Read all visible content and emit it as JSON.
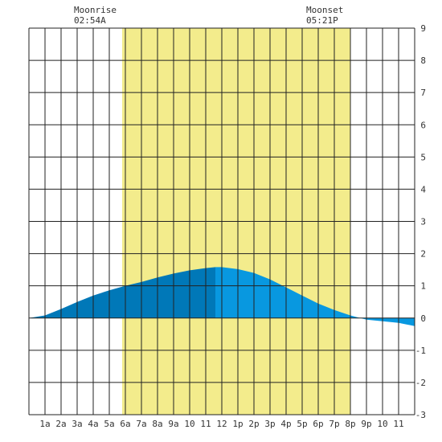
{
  "moon": {
    "rise_label": "Moonrise",
    "rise_time": "02:54A",
    "set_label": "Moonset",
    "set_time": "05:21P"
  },
  "colors": {
    "daylight": "#f3ec8c",
    "tide_left": "#0078b8",
    "tide_right": "#0898e0",
    "grid": "#222222",
    "background": "#ffffff"
  },
  "chart_data": {
    "type": "area",
    "xlim": [
      0,
      24
    ],
    "ylim": [
      -3,
      9
    ],
    "grid": true,
    "x_tick_labels": [
      "1a",
      "2a",
      "3a",
      "4a",
      "5a",
      "6a",
      "7a",
      "8a",
      "9a",
      "10",
      "11",
      "12",
      "1p",
      "2p",
      "3p",
      "4p",
      "5p",
      "6p",
      "7p",
      "8p",
      "9p",
      "10",
      "11"
    ],
    "y_tick_labels": [
      "9",
      "8",
      "7",
      "6",
      "5",
      "4",
      "3",
      "2",
      "1",
      "0",
      "-1",
      "-2",
      "-3"
    ],
    "daylight_hours": [
      5.8,
      20.0
    ],
    "tide_split_hour": 11.6,
    "series": [
      {
        "x": [
          0,
          1,
          2,
          3,
          4,
          5,
          6,
          7,
          8,
          9,
          10,
          11,
          11.6,
          12,
          13,
          14,
          15,
          16,
          17,
          18,
          19,
          20,
          21,
          22,
          23,
          24
        ],
        "values": [
          0.0,
          0.08,
          0.28,
          0.5,
          0.7,
          0.86,
          1.0,
          1.12,
          1.26,
          1.38,
          1.48,
          1.55,
          1.58,
          1.58,
          1.52,
          1.4,
          1.2,
          0.95,
          0.7,
          0.45,
          0.25,
          0.08,
          -0.05,
          -0.1,
          -0.15,
          -0.25
        ]
      }
    ]
  }
}
